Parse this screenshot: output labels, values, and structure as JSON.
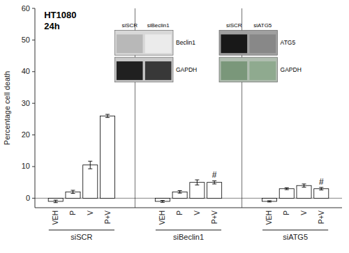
{
  "chart_data": {
    "type": "bar",
    "ylabel": "Percentage cell death",
    "groups": [
      "siSCR",
      "siBeclin1",
      "siATG5"
    ],
    "categories": [
      "VEH",
      "P",
      "V",
      "P+V"
    ],
    "values": [
      [
        -1.0,
        2.0,
        10.5,
        26.0
      ],
      [
        -1.0,
        2.0,
        5.0,
        5.0
      ],
      [
        -1.0,
        3.0,
        4.0,
        3.0
      ]
    ],
    "errors": [
      [
        0.4,
        0.5,
        1.2,
        0.5
      ],
      [
        0.3,
        0.4,
        0.8,
        0.5
      ],
      [
        0.2,
        0.3,
        0.5,
        0.4
      ]
    ],
    "hash_labels": [
      [
        null,
        null,
        null,
        null
      ],
      [
        null,
        null,
        null,
        "#"
      ],
      [
        null,
        null,
        null,
        "#"
      ]
    ],
    "color": "#ffffff",
    "ylim": [
      -3,
      60
    ],
    "yticks": [
      0,
      10,
      20,
      30,
      40,
      50,
      60
    ],
    "grid": false,
    "annotations": [
      "HT1080",
      "24h"
    ],
    "insets": [
      {
        "lanes": [
          "siSCR",
          "siBeclin1"
        ],
        "rows": [
          "Beclin1",
          "GAPDH"
        ],
        "colors": [
          "#d8d8d8",
          "#c8c8c8",
          "#b8b8b8",
          "#ebebeb",
          "#202020",
          "#383838"
        ]
      },
      {
        "lanes": [
          "siSCR",
          "siATG5"
        ],
        "rows": [
          "ATG5",
          "GAPDH"
        ],
        "colors": [
          "#a0a0a0",
          "#b0bdb0",
          "#181818",
          "#888888",
          "#7a977a",
          "#8faa8f"
        ]
      }
    ]
  }
}
